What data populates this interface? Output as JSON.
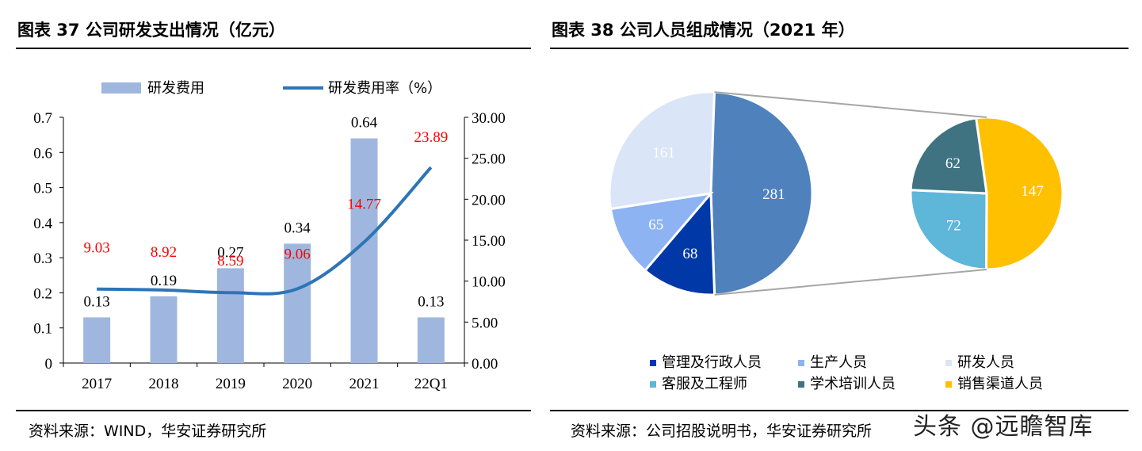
{
  "titles": {
    "left": "图表 37 公司研发支出情况（亿元）",
    "right": "图表 38 公司人员组成情况（2021 年）"
  },
  "sources": {
    "left": "资料来源：WIND，华安证券研究所",
    "right": "资料来源：公司招股说明书，华安证券研究所"
  },
  "watermark": "头条 @远瞻智库",
  "chart_data": [
    {
      "type": "bar",
      "categories": [
        "2017",
        "2018",
        "2019",
        "2020",
        "2021",
        "22Q1"
      ],
      "series": [
        {
          "name": "研发费用",
          "values": [
            0.13,
            0.19,
            0.27,
            0.34,
            0.64,
            0.13
          ],
          "color": "#9fb7df",
          "labels": [
            "0.13",
            "0.19",
            "0.27",
            "0.34",
            "0.64",
            "0.13"
          ]
        },
        {
          "name": "研发费用率（%）",
          "type": "line",
          "axis": "right",
          "values": [
            9.03,
            8.92,
            8.59,
            9.06,
            14.77,
            23.89
          ],
          "color": "#2e75b6",
          "label_color": "#ff0000",
          "labels": [
            "9.03",
            "8.92",
            "8.59",
            "9.06",
            "14.77",
            "23.89"
          ]
        }
      ],
      "ylim": [
        0,
        0.7
      ],
      "yticks": [
        "0",
        "0.1",
        "0.2",
        "0.3",
        "0.4",
        "0.5",
        "0.6",
        "0.7"
      ],
      "y2lim": [
        0,
        30
      ],
      "y2ticks": [
        "0.00",
        "5.00",
        "10.00",
        "15.00",
        "20.00",
        "25.00",
        "30.00"
      ],
      "legend": "top"
    },
    {
      "type": "pie",
      "slices": [
        {
          "name": "研发人员",
          "value": 161,
          "color": "#dae5f7"
        },
        {
          "name": "学术培训人员+销售渠道人员+客服及工程师",
          "value": 281,
          "color": "#4f81bd"
        },
        {
          "name": "管理及行政人员",
          "value": 68,
          "color": "#0038a8"
        },
        {
          "name": "生产人员",
          "value": 65,
          "color": "#8db3f3"
        }
      ],
      "breakout": [
        {
          "name": "销售渠道人员",
          "value": 147,
          "color": "#ffc000"
        },
        {
          "name": "客服及工程师",
          "value": 72,
          "color": "#5eb6d8"
        },
        {
          "name": "学术培训人员",
          "value": 62,
          "color": "#3f7382"
        }
      ],
      "legend": [
        {
          "name": "管理及行政人员",
          "color": "#0038a8"
        },
        {
          "name": "生产人员",
          "color": "#8db3f3"
        },
        {
          "name": "研发人员",
          "color": "#dae5f7"
        },
        {
          "name": "客服及工程师",
          "color": "#5eb6d8"
        },
        {
          "name": "学术培训人员",
          "color": "#3f7382"
        },
        {
          "name": "销售渠道人员",
          "color": "#ffc000"
        }
      ],
      "legend_position": "bottom"
    }
  ]
}
